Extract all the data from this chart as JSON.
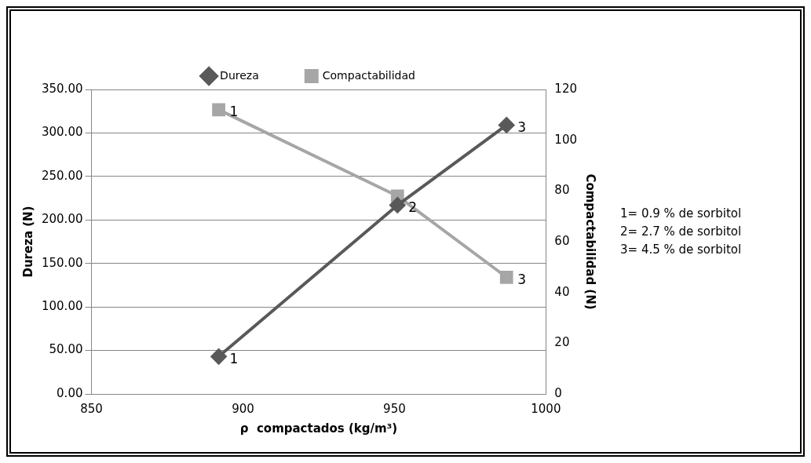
{
  "chart_data": {
    "type": "line",
    "xlabel": "ρ  compactados (kg/m³)",
    "ylabel": "Dureza (N)",
    "y2label": "Compactabilidad (N)",
    "series": [
      {
        "name": "Dureza",
        "color": "#595959",
        "marker": "diamond",
        "x": [
          892,
          951,
          987
        ],
        "values": [
          43,
          217,
          309
        ]
      },
      {
        "name": "Compactabilidad",
        "color": "#a6a6a6",
        "marker": "square",
        "axis": "y2",
        "x": [
          892,
          951,
          987
        ],
        "values": [
          112,
          78,
          46
        ]
      }
    ],
    "xlim": [
      850,
      1000
    ],
    "xticks": [
      850,
      900,
      950,
      1000
    ],
    "ylim": [
      0,
      350
    ],
    "yticks": [
      {
        "value": 0,
        "label": "0.00"
      },
      {
        "value": 50,
        "label": "50.00"
      },
      {
        "value": 100,
        "label": "100.00"
      },
      {
        "value": 150,
        "label": "150.00"
      },
      {
        "value": 200,
        "label": "200.00"
      },
      {
        "value": 250,
        "label": "250.00"
      },
      {
        "value": 300,
        "label": "300.00"
      },
      {
        "value": 350,
        "label": "350.00"
      }
    ],
    "y2lim": [
      0,
      120
    ],
    "y2ticks": [
      0,
      20,
      40,
      60,
      80,
      100,
      120
    ],
    "grid": "y",
    "legend": "top",
    "line_style": "solid",
    "annotations": [
      {
        "text": "1",
        "x": 892,
        "y": 43
      },
      {
        "text": "2",
        "x": 951,
        "y": 217
      },
      {
        "text": "3",
        "x": 987,
        "y": 309
      },
      {
        "text": "1",
        "x": 892,
        "y": 327
      },
      {
        "text": "3",
        "x": 987,
        "y": 134
      },
      "1= 0.9 % de sorbitol",
      "2= 2.7 % de sorbitol",
      "3= 4.5 % de sorbitol"
    ]
  }
}
